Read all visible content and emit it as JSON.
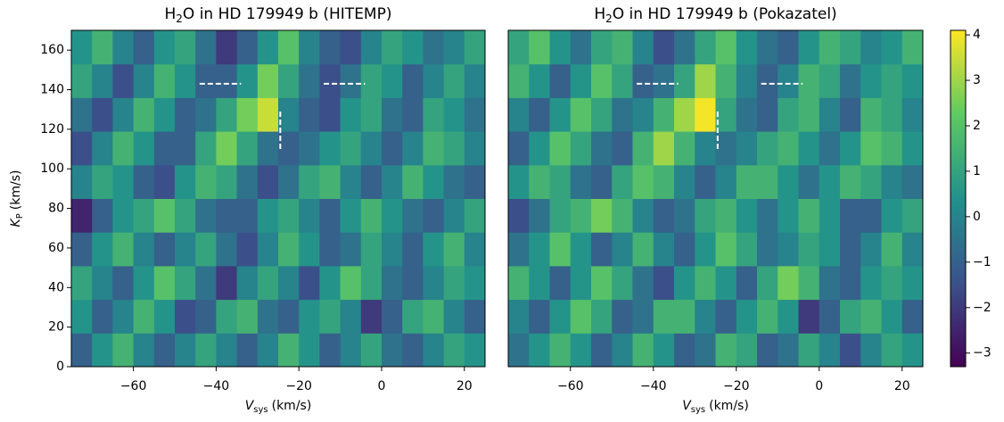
{
  "chart_data": [
    {
      "type": "heatmap",
      "title": [
        "H",
        "2",
        "O in HD 179949 b (HITEMP)"
      ],
      "xlabel": [
        "V",
        "sys",
        "(km/s)"
      ],
      "ylabel": [
        "K",
        "P",
        "(km/s)"
      ],
      "xlim": [
        -75,
        25
      ],
      "ylim": [
        0,
        170
      ],
      "xticks": [
        {
          "value": -60,
          "label": "−60"
        },
        {
          "value": -40,
          "label": "−40"
        },
        {
          "value": -20,
          "label": "−20"
        },
        0,
        20
      ],
      "yticks": [
        0,
        20,
        40,
        60,
        80,
        100,
        120,
        140,
        160
      ],
      "xbins": [
        -75,
        -70,
        -65,
        -60,
        -55,
        -50,
        -45,
        -40,
        -35,
        -30,
        -25,
        -20,
        -15,
        -10,
        -5,
        0,
        5,
        10,
        15,
        20,
        25
      ],
      "ybins": [
        0,
        17,
        34,
        51,
        68,
        85,
        102,
        119,
        136,
        153,
        170
      ],
      "z": [
        [
          -1,
          0.5,
          1.5,
          0,
          -1,
          0,
          1,
          0,
          -1,
          0,
          1.5,
          0.5,
          -1,
          0,
          1,
          -0.5,
          -1,
          0,
          1,
          0.5
        ],
        [
          0.5,
          -1,
          0,
          1.5,
          0.5,
          -1.5,
          -1,
          1,
          1.5,
          -0.5,
          -1,
          0.5,
          1,
          0,
          -2,
          -1,
          1,
          1.5,
          0,
          -1
        ],
        [
          1,
          0,
          -1,
          0.5,
          2,
          1,
          -0.5,
          -2,
          0,
          1,
          0,
          -1.5,
          0.5,
          2,
          1,
          -0.5,
          -1,
          0,
          1,
          0.5
        ],
        [
          -1,
          0.5,
          1.5,
          0,
          -1,
          0,
          1,
          -0.5,
          -1.5,
          0,
          1.5,
          0.5,
          -1,
          -0.5,
          1,
          0,
          -1,
          0.5,
          1.5,
          0
        ],
        [
          -2.5,
          -1,
          0.5,
          1,
          2,
          1,
          -0.5,
          -1,
          -1,
          0.5,
          1,
          0,
          -1,
          0.5,
          1.5,
          0.5,
          -0.5,
          -1,
          0,
          1
        ],
        [
          0,
          1,
          0.5,
          -1,
          -1.5,
          0.5,
          1.5,
          1,
          -0.5,
          -1.5,
          -0.5,
          1,
          1.5,
          0,
          -1,
          0,
          1.5,
          0.5,
          -0.5,
          -1
        ],
        [
          -1.5,
          0,
          1.5,
          0.5,
          -1,
          -1,
          1,
          2.5,
          1,
          -0.5,
          -1,
          -0.5,
          0.5,
          1,
          0,
          -1,
          0,
          1.5,
          1,
          0
        ],
        [
          -0.5,
          -1.5,
          0,
          1.5,
          0.5,
          -1,
          -0.5,
          1,
          2.5,
          3.5,
          0,
          -1,
          -1.5,
          0.5,
          1,
          -0.5,
          -1,
          1,
          0.5,
          -0.5
        ],
        [
          1,
          0,
          -1.5,
          0,
          1.5,
          0.5,
          -1,
          -1,
          0.5,
          2.5,
          1,
          -0.5,
          -1.5,
          -0.5,
          1,
          0.5,
          -1,
          0,
          1,
          0
        ],
        [
          0.5,
          1.5,
          0,
          -1,
          0.5,
          1,
          -0.5,
          -2,
          -1,
          0.5,
          2,
          0,
          -1,
          -1.5,
          0,
          1,
          0.5,
          -0.5,
          0,
          1
        ]
      ],
      "dashes": [
        {
          "x": [
            -44,
            -34
          ],
          "y": [
            143,
            143
          ]
        },
        {
          "x": [
            -14,
            -4
          ],
          "y": [
            143,
            143
          ]
        },
        {
          "x": [
            -24.5,
            -24.5
          ],
          "y": [
            110,
            130
          ]
        }
      ]
    },
    {
      "type": "heatmap",
      "title": [
        "H",
        "2",
        "O in HD 179949 b (Pokazatel)"
      ],
      "xlabel": [
        "V",
        "sys",
        "(km/s)"
      ],
      "xlim": [
        -75,
        25
      ],
      "ylim": [
        0,
        170
      ],
      "xticks": [
        {
          "value": -60,
          "label": "−60"
        },
        {
          "value": -40,
          "label": "−40"
        },
        {
          "value": -20,
          "label": "−20"
        },
        0,
        20
      ],
      "xbins": [
        -75,
        -70,
        -65,
        -60,
        -55,
        -50,
        -45,
        -40,
        -35,
        -30,
        -25,
        -20,
        -15,
        -10,
        -5,
        0,
        5,
        10,
        15,
        20,
        25
      ],
      "ybins": [
        0,
        17,
        34,
        51,
        68,
        85,
        102,
        119,
        136,
        153,
        170
      ],
      "z": [
        [
          -0.5,
          0.5,
          1.5,
          0.5,
          -1,
          0,
          1.5,
          0.5,
          -1,
          -0.5,
          1.5,
          1,
          -1,
          -0.5,
          1,
          0,
          -1.5,
          0,
          1,
          0.5
        ],
        [
          0,
          -1,
          0.5,
          2,
          1,
          -1,
          -0.5,
          1.5,
          1.5,
          0,
          -1,
          0.5,
          1.5,
          0.5,
          -2,
          -1,
          1,
          1.5,
          0.5,
          -1
        ],
        [
          1.5,
          0.5,
          -1,
          0.5,
          2,
          1,
          -0.5,
          -1.5,
          0.5,
          1.5,
          0.5,
          -1,
          1,
          2.5,
          1.5,
          -0.5,
          -1,
          0.5,
          1,
          0.5
        ],
        [
          -0.5,
          0.5,
          2,
          0.5,
          -1,
          0,
          1.5,
          0,
          -1,
          0.5,
          2,
          1,
          -0.5,
          0,
          1,
          0.5,
          -1,
          0,
          1.5,
          0
        ],
        [
          -1.5,
          -0.5,
          1,
          1.5,
          2.5,
          1.5,
          0,
          -1,
          -0.5,
          1,
          1.5,
          0.5,
          -0.5,
          0.5,
          1.5,
          0.5,
          -1,
          -1,
          0.5,
          1
        ],
        [
          0.5,
          1.5,
          1,
          -0.5,
          -1,
          1,
          2,
          1.5,
          0,
          -1,
          0,
          1.5,
          1.5,
          0.5,
          -0.5,
          0.5,
          1.5,
          1,
          0,
          -0.5
        ],
        [
          -1,
          0.5,
          2,
          1,
          -0.5,
          -1,
          1.5,
          3,
          1.5,
          0,
          -0.5,
          0,
          1,
          1.5,
          0.5,
          -0.5,
          0.5,
          2,
          1.5,
          0.5
        ],
        [
          0,
          -1,
          0.5,
          2,
          1,
          -0.5,
          0,
          1.5,
          3,
          4,
          1,
          -0.5,
          -1,
          1,
          1.5,
          0,
          -1,
          1.5,
          1,
          0
        ],
        [
          1.5,
          0.5,
          -1,
          0.5,
          2,
          1,
          -1,
          -0.5,
          1,
          3,
          1.5,
          0,
          -1,
          0,
          1.5,
          1,
          -0.5,
          0.5,
          1,
          0.5
        ],
        [
          1,
          2,
          0.5,
          -0.5,
          1,
          1.5,
          0,
          -1.5,
          -0.5,
          1,
          2,
          0.5,
          -0.5,
          -1,
          0.5,
          1.5,
          1,
          0,
          0.5,
          1.5
        ]
      ],
      "dashes": [
        {
          "x": [
            -44,
            -34
          ],
          "y": [
            143,
            143
          ]
        },
        {
          "x": [
            -14,
            -4
          ],
          "y": [
            143,
            143
          ]
        },
        {
          "x": [
            -24.5,
            -24.5
          ],
          "y": [
            110,
            130
          ]
        }
      ]
    },
    {
      "type": "colorbar",
      "colormap": "viridis",
      "lim": [
        -3.3,
        4.1
      ],
      "ticks": [
        {
          "value": -3,
          "label": "−3"
        },
        {
          "value": -2,
          "label": "−2"
        },
        {
          "value": -1,
          "label": "−1"
        },
        0,
        1,
        2,
        3,
        4
      ]
    }
  ]
}
